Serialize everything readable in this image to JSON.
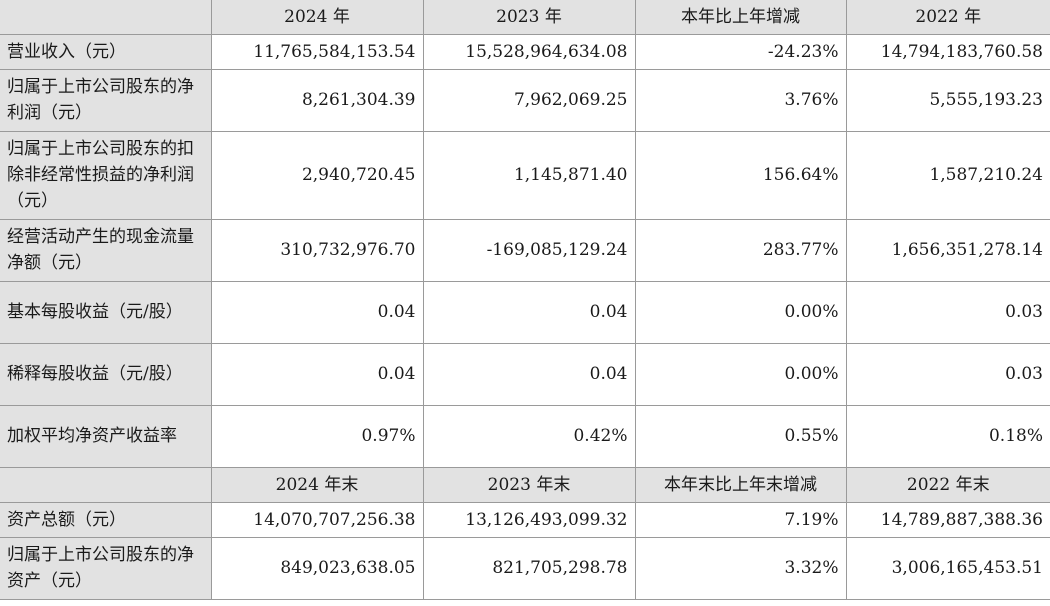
{
  "header1": {
    "c1": "2024 年",
    "c2": "2023 年",
    "c3": "本年比上年增减",
    "c4": "2022 年"
  },
  "rows1": [
    {
      "label": "营业收入（元）",
      "v1": "11,765,584,153.54",
      "v2": "15,528,964,634.08",
      "v3": "-24.23%",
      "v4": "14,794,183,760.58"
    },
    {
      "label": "归属于上市公司股东的净利润（元）",
      "v1": "8,261,304.39",
      "v2": "7,962,069.25",
      "v3": "3.76%",
      "v4": "5,555,193.23"
    },
    {
      "label": "归属于上市公司股东的扣除非经常性损益的净利润（元）",
      "v1": "2,940,720.45",
      "v2": "1,145,871.40",
      "v3": "156.64%",
      "v4": "1,587,210.24"
    },
    {
      "label": "经营活动产生的现金流量净额（元）",
      "v1": "310,732,976.70",
      "v2": "-169,085,129.24",
      "v3": "283.77%",
      "v4": "1,656,351,278.14"
    },
    {
      "label": "基本每股收益（元/股）",
      "v1": "0.04",
      "v2": "0.04",
      "v3": "0.00%",
      "v4": "0.03"
    },
    {
      "label": "稀释每股收益（元/股）",
      "v1": "0.04",
      "v2": "0.04",
      "v3": "0.00%",
      "v4": "0.03"
    },
    {
      "label": "加权平均净资产收益率",
      "v1": "0.97%",
      "v2": "0.42%",
      "v3": "0.55%",
      "v4": "0.18%"
    }
  ],
  "header2": {
    "c1": "2024 年末",
    "c2": "2023 年末",
    "c3": "本年末比上年末增减",
    "c4": "2022 年末"
  },
  "rows2": [
    {
      "label": "资产总额（元）",
      "v1": "14,070,707,256.38",
      "v2": "13,126,493,099.32",
      "v3": "7.19%",
      "v4": "14,789,887,388.36"
    },
    {
      "label": "归属于上市公司股东的净资产（元）",
      "v1": "849,023,638.05",
      "v2": "821,705,298.78",
      "v3": "3.32%",
      "v4": "3,006,165,453.51"
    }
  ]
}
